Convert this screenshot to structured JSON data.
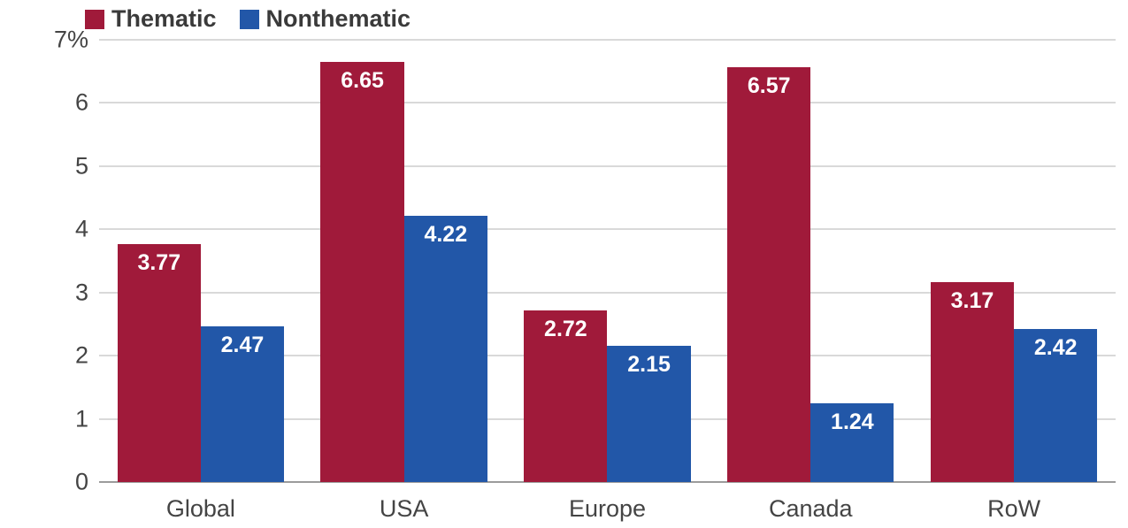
{
  "chart_data": {
    "type": "bar",
    "title": "",
    "xlabel": "",
    "ylabel": "",
    "categories": [
      "Global",
      "USA",
      "Europe",
      "Canada",
      "RoW"
    ],
    "series": [
      {
        "name": "Thematic",
        "color": "#A01A3A",
        "values": [
          3.77,
          6.65,
          2.72,
          6.57,
          3.17
        ]
      },
      {
        "name": "Nonthematic",
        "color": "#2257A8",
        "values": [
          2.47,
          4.22,
          2.15,
          1.24,
          2.42
        ]
      }
    ],
    "ylim": [
      0,
      7
    ],
    "yticks": [
      "7%",
      "6",
      "5",
      "4",
      "3",
      "2",
      "1",
      "0"
    ],
    "grid": true,
    "legend_position": "top-left",
    "value_labels": "inside-top, white bold, two decimals"
  },
  "colors": {
    "thematic": "#A01A3A",
    "nonthematic": "#2257A8",
    "gridline": "#d9d9d9",
    "baseline": "#9b9b9b",
    "axis_text": "#444444",
    "background": "#ffffff"
  }
}
